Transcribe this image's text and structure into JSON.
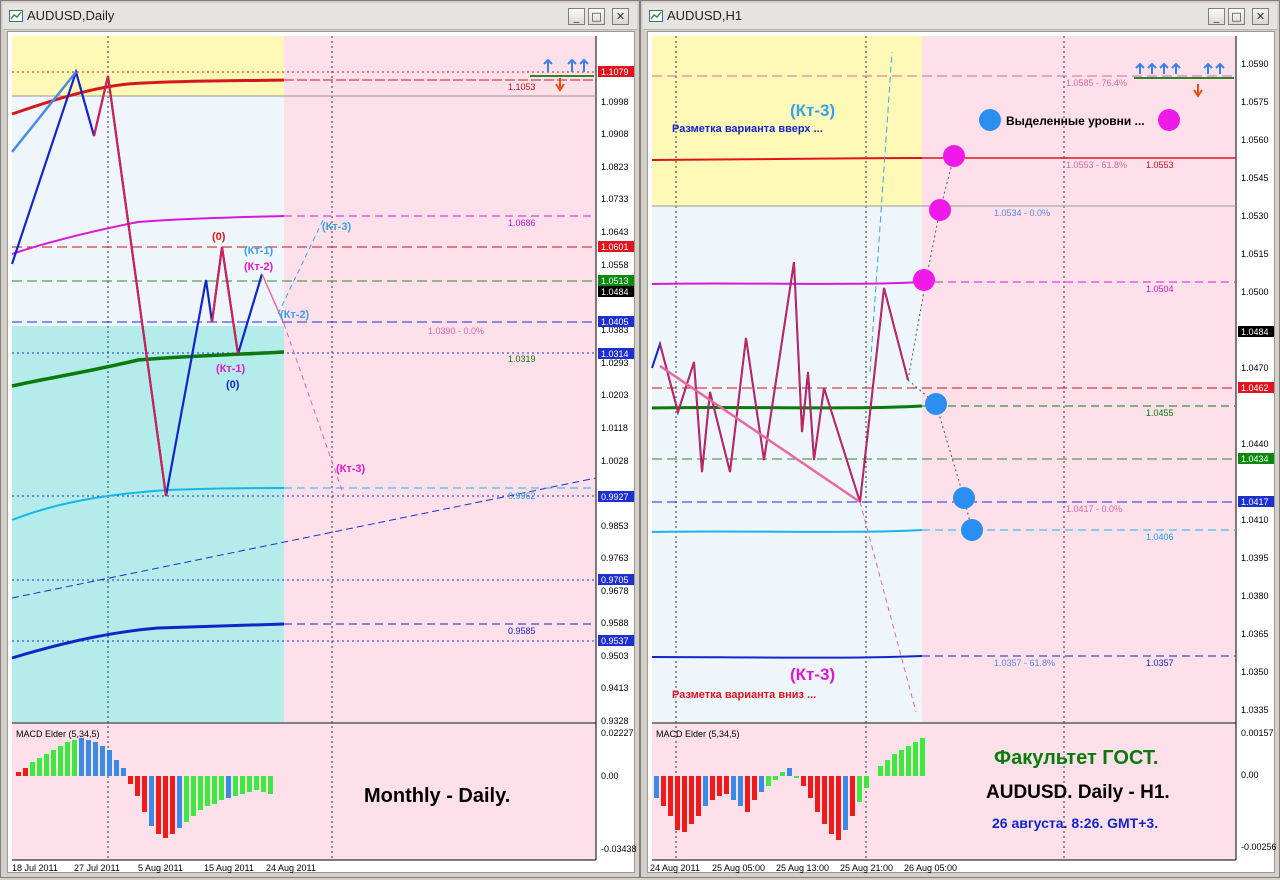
{
  "left": {
    "title": "AUDUSD,Daily",
    "price_labels": [
      "1.0998",
      "1.0908",
      "1.0823",
      "1.0733",
      "1.0643",
      "1.0558",
      "1.0383",
      "1.0293",
      "1.0203",
      "1.0118",
      "1.0028",
      "0.9853",
      "0.9763",
      "0.9678",
      "0.9588",
      "0.9503",
      "0.9413",
      "0.9328"
    ],
    "tagged_labels": [
      {
        "text": "1.1079",
        "color": "#e0141e"
      },
      {
        "text": "1.0601",
        "color": "#e0141e"
      },
      {
        "text": "1.0513",
        "color": "#0a8a0a"
      },
      {
        "text": "1.0484",
        "color": "#000000"
      },
      {
        "text": "1.0405",
        "color": "#1e2fd0"
      },
      {
        "text": "1.0314",
        "color": "#1e2fd0"
      },
      {
        "text": "0.9927",
        "color": "#1e2fd0"
      },
      {
        "text": "0.9705",
        "color": "#1e2fd0"
      },
      {
        "text": "0.9537",
        "color": "#1e2fd0"
      }
    ],
    "line_notes": {
      "n1053": "1.1053",
      "n1686": "1.0686",
      "n0390": "1.0390 - 0.0%",
      "n0319": "1.0319",
      "n9962": "0.9962",
      "n9585": "0.9585"
    },
    "wave_labels": {
      "zero_top": "(0)",
      "kt1_top": "(Кт-1)",
      "kt2_top": "(Кт-2)",
      "kt3_up": "(Кт-3)",
      "kt2_right": "(Кт-2)",
      "kt1_bottom": "(Кт-1)",
      "zero_bottom": "(0)",
      "kt3_down": "(Кт-3)"
    },
    "macd_title": "MACD Elder (5,34,5)",
    "macd_scale": [
      "0.02227",
      "0.00",
      "-0.03438"
    ],
    "caption": "Monthly - Daily.",
    "dates": [
      "18 Jul 2011",
      "27 Jul 2011",
      "5 Aug 2011",
      "15 Aug 2011",
      "24 Aug 2011"
    ]
  },
  "right": {
    "title": "AUDUSD,H1",
    "price_labels": [
      "1.0590",
      "1.0575",
      "1.0560",
      "1.0545",
      "1.0530",
      "1.0515",
      "1.0500",
      "1.0470",
      "1.0440",
      "1.0410",
      "1.0395",
      "1.0380",
      "1.0365",
      "1.0350",
      "1.0335"
    ],
    "tagged_labels": [
      {
        "text": "1.0484",
        "color": "#000000"
      },
      {
        "text": "1.0462",
        "color": "#e0141e"
      },
      {
        "text": "1.0434",
        "color": "#0a8a0a"
      },
      {
        "text": "1.0417",
        "color": "#1e2fd0"
      }
    ],
    "line_notes": {
      "n0585": "1.0585 - 76.4%",
      "n0553a": "1.0553 - 61.8%",
      "n0553b": "1.0553",
      "n0534": "1.0534 - 0.0%",
      "n0504": "1.0504",
      "n0455": "1.0455",
      "n0417": "1.0417 - 0.0%",
      "n0406": "1.0406",
      "n0357a": "1.0357 - 61.8%",
      "n0357b": "1.0357"
    },
    "kt3_up": "(Кт-3)",
    "variant_up": "Разметка варианта вверх ...",
    "highlighted": "Выделенные уровни ...",
    "kt3_down": "(Кт-3)",
    "variant_down": "Разметка варианта вниз ...",
    "macd_title": "MACD Elder (5,34,5)",
    "macd_scale": [
      "0.00157",
      "0.00",
      "-0.00256"
    ],
    "caption1": "Факультет ГОСТ.",
    "caption2": "AUDUSD. Daily - H1.",
    "caption3": "26 августа. 8:26. GMT+3.",
    "dates": [
      "24 Aug 2011",
      "25 Aug 05:00",
      "25 Aug 13:00",
      "25 Aug 21:00",
      "26 Aug 05:00"
    ]
  },
  "controls": {
    "minimize": "_",
    "maximize": "□",
    "close": "✕"
  }
}
